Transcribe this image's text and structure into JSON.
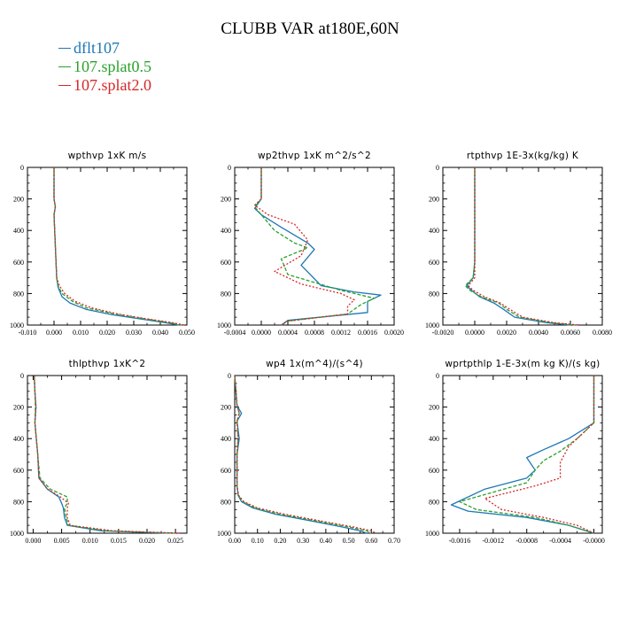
{
  "title": "CLUBB VAR at180E,60N",
  "colors": {
    "dflt107": "#1f77b4",
    "splat05": "#2ca02c",
    "splat20": "#d62728"
  },
  "legend": [
    {
      "label": "dflt107",
      "color": "#1f77b4"
    },
    {
      "label": "107.splat0.5",
      "color": "#2ca02c"
    },
    {
      "label": "107.splat2.0",
      "color": "#d62728"
    }
  ],
  "chart_data": [
    {
      "type": "line",
      "title": "wpthvp  1xK m/s",
      "xlim": [
        -0.01,
        0.05
      ],
      "ylim": [
        1000,
        0
      ],
      "y_reversed": true,
      "xticks": [
        "-0.010",
        "0.000",
        "0.010",
        "0.020",
        "0.030",
        "0.040",
        "0.050"
      ],
      "xtick_values": [
        -0.01,
        0.0,
        0.01,
        0.02,
        0.03,
        0.04,
        0.05
      ],
      "yticks": [
        0,
        200,
        400,
        600,
        800,
        1000
      ],
      "series": [
        {
          "name": "dflt107",
          "style": "solid",
          "x": [
            0.0,
            0.0,
            0.0005,
            0.0,
            0.0005,
            0.001,
            0.0015,
            0.003,
            0.006,
            0.012,
            0.022,
            0.032,
            0.042,
            0.047
          ],
          "y": [
            0,
            200,
            250,
            300,
            500,
            700,
            760,
            820,
            860,
            900,
            935,
            960,
            985,
            1000
          ]
        },
        {
          "name": "107.splat0.5",
          "style": "dashed",
          "x": [
            0.0,
            0.0,
            0.0005,
            0.0,
            0.0005,
            0.001,
            0.0015,
            0.003,
            0.007,
            0.012,
            0.023,
            0.033,
            0.043,
            0.048
          ],
          "y": [
            0,
            200,
            250,
            300,
            500,
            700,
            750,
            800,
            850,
            890,
            930,
            958,
            983,
            1000
          ]
        },
        {
          "name": "107.splat2.0",
          "style": "dotted",
          "x": [
            0.0,
            0.0,
            0.0005,
            0.0,
            0.0005,
            0.001,
            0.002,
            0.004,
            0.008,
            0.014,
            0.024,
            0.034,
            0.044,
            0.049
          ],
          "y": [
            0,
            200,
            250,
            300,
            500,
            700,
            750,
            800,
            850,
            890,
            930,
            958,
            983,
            1000
          ]
        }
      ]
    },
    {
      "type": "line",
      "title": "wp2thvp  1xK m^2/s^2",
      "xlim": [
        -0.0004,
        0.002
      ],
      "ylim": [
        1000,
        0
      ],
      "y_reversed": true,
      "xticks": [
        "-0.0004",
        "0.0000",
        "0.0004",
        "0.0008",
        "0.0012",
        "0.0016",
        "0.0020"
      ],
      "xtick_values": [
        -0.0004,
        0.0,
        0.0004,
        0.0008,
        0.0012,
        0.0016,
        0.002
      ],
      "yticks": [
        0,
        200,
        400,
        600,
        800,
        1000
      ],
      "series": [
        {
          "name": "dflt107",
          "style": "solid",
          "x": [
            0.0,
            0.0,
            -0.0001,
            0.0,
            0.0003,
            0.0007,
            0.0008,
            0.0006,
            0.0009,
            0.0014,
            0.0018,
            0.0016,
            0.0016,
            0.0004,
            0.0003
          ],
          "y": [
            0,
            200,
            260,
            300,
            380,
            480,
            520,
            620,
            750,
            790,
            810,
            850,
            920,
            970,
            1000
          ]
        },
        {
          "name": "107.splat0.5",
          "style": "dashed",
          "x": [
            0.0,
            0.0,
            -0.0001,
            0.0,
            0.0002,
            0.0005,
            0.0007,
            0.0003,
            0.0004,
            0.0012,
            0.0017,
            0.0015,
            0.0013,
            0.0004,
            0.0003
          ],
          "y": [
            0,
            200,
            250,
            300,
            400,
            480,
            510,
            580,
            680,
            780,
            830,
            870,
            930,
            975,
            1000
          ]
        },
        {
          "name": "107.splat2.0",
          "style": "dotted",
          "x": [
            0.0,
            0.0,
            -0.0001,
            0.0001,
            0.0005,
            0.0007,
            0.0006,
            0.0002,
            0.0006,
            0.0012,
            0.0014,
            0.0013,
            0.0013,
            0.0004,
            0.0003
          ],
          "y": [
            0,
            200,
            240,
            300,
            360,
            460,
            560,
            660,
            740,
            800,
            840,
            880,
            930,
            975,
            1000
          ]
        }
      ]
    },
    {
      "type": "line",
      "title": "rtpthvp  1E-3x(kg/kg) K",
      "xlim": [
        -0.002,
        0.008
      ],
      "ylim": [
        1000,
        0
      ],
      "y_reversed": true,
      "xticks": [
        "-0.0020",
        "0.0000",
        "0.0020",
        "0.0040",
        "0.0060",
        "0.0080"
      ],
      "xtick_values": [
        -0.002,
        0.0,
        0.002,
        0.004,
        0.006,
        0.008
      ],
      "yticks": [
        0,
        200,
        400,
        600,
        800,
        1000
      ],
      "series": [
        {
          "name": "dflt107",
          "style": "solid",
          "x": [
            0.0,
            0.0,
            -0.0001,
            -0.0005,
            -0.0002,
            0.0003,
            0.0012,
            0.0018,
            0.0025,
            0.0045,
            0.006
          ],
          "y": [
            0,
            600,
            700,
            750,
            780,
            820,
            860,
            900,
            950,
            985,
            1000
          ]
        },
        {
          "name": "107.splat0.5",
          "style": "dashed",
          "x": [
            0.0,
            0.0,
            -0.0001,
            -0.0006,
            -0.0003,
            0.0004,
            0.0015,
            0.002,
            0.0028,
            0.0048,
            0.0063
          ],
          "y": [
            0,
            600,
            700,
            750,
            780,
            820,
            860,
            900,
            950,
            985,
            1000
          ]
        },
        {
          "name": "107.splat2.0",
          "style": "dotted",
          "x": [
            0.0,
            0.0,
            0.0,
            -0.0004,
            -0.0001,
            0.0006,
            0.0016,
            0.0022,
            0.003,
            0.005,
            0.0065
          ],
          "y": [
            0,
            600,
            700,
            750,
            780,
            820,
            860,
            900,
            950,
            985,
            1000
          ]
        }
      ]
    },
    {
      "type": "line",
      "title": "thlpthvp  1xK^2",
      "xlim": [
        -0.001,
        0.027
      ],
      "ylim": [
        1000,
        0
      ],
      "y_reversed": true,
      "xticks": [
        "0.000",
        "0.005",
        "0.010",
        "0.015",
        "0.020",
        "0.025"
      ],
      "xtick_values": [
        0.0,
        0.005,
        0.01,
        0.015,
        0.02,
        0.025
      ],
      "yticks": [
        0,
        200,
        400,
        600,
        800,
        1000
      ],
      "series": [
        {
          "name": "dflt107",
          "style": "solid",
          "x": [
            0.0002,
            0.0003,
            0.0005,
            0.0003,
            0.0008,
            0.001,
            0.0025,
            0.0045,
            0.005,
            0.0053,
            0.0055,
            0.006,
            0.012,
            0.02,
            0.024
          ],
          "y": [
            0,
            100,
            200,
            300,
            500,
            650,
            720,
            770,
            810,
            840,
            900,
            950,
            985,
            995,
            1000
          ]
        },
        {
          "name": "107.splat0.5",
          "style": "dashed",
          "x": [
            0.0002,
            0.0003,
            0.0004,
            0.0003,
            0.0008,
            0.0012,
            0.003,
            0.006,
            0.006,
            0.0055,
            0.0058,
            0.0062,
            0.013,
            0.021,
            0.025
          ],
          "y": [
            0,
            100,
            200,
            300,
            500,
            650,
            720,
            770,
            810,
            840,
            900,
            950,
            985,
            995,
            1000
          ]
        },
        {
          "name": "107.splat2.0",
          "style": "dotted",
          "x": [
            0.0002,
            0.0003,
            0.0005,
            0.0003,
            0.0008,
            0.001,
            0.0025,
            0.0048,
            0.0062,
            0.006,
            0.006,
            0.0065,
            0.014,
            0.022,
            0.026
          ],
          "y": [
            0,
            100,
            200,
            300,
            500,
            650,
            720,
            770,
            810,
            840,
            900,
            950,
            985,
            995,
            1000
          ]
        }
      ]
    },
    {
      "type": "line",
      "title": "wp4  1x(m^4)/(s^4)",
      "xlim": [
        0.0,
        0.7
      ],
      "ylim": [
        1000,
        0
      ],
      "y_reversed": true,
      "xticks": [
        "0.00",
        "0.10",
        "0.20",
        "0.30",
        "0.40",
        "0.50",
        "0.60",
        "0.70"
      ],
      "xtick_values": [
        0.0,
        0.1,
        0.2,
        0.3,
        0.4,
        0.5,
        0.6,
        0.7
      ],
      "yticks": [
        0,
        200,
        400,
        600,
        800,
        1000
      ],
      "series": [
        {
          "name": "dflt107",
          "style": "solid",
          "x": [
            0.0,
            0.01,
            0.03,
            0.01,
            0.02,
            0.01,
            0.01,
            0.015,
            0.03,
            0.08,
            0.18,
            0.33,
            0.47,
            0.55,
            0.58
          ],
          "y": [
            0,
            190,
            240,
            290,
            400,
            500,
            700,
            760,
            800,
            840,
            880,
            920,
            960,
            985,
            1000
          ]
        },
        {
          "name": "107.splat0.5",
          "style": "dashed",
          "x": [
            0.0,
            0.01,
            0.02,
            0.01,
            0.015,
            0.01,
            0.01,
            0.016,
            0.035,
            0.09,
            0.2,
            0.35,
            0.5,
            0.58,
            0.6
          ],
          "y": [
            0,
            190,
            240,
            290,
            400,
            500,
            700,
            760,
            800,
            840,
            880,
            920,
            960,
            985,
            1000
          ]
        },
        {
          "name": "107.splat2.0",
          "style": "dotted",
          "x": [
            0.0,
            0.01,
            0.02,
            0.01,
            0.015,
            0.01,
            0.01,
            0.017,
            0.04,
            0.1,
            0.22,
            0.37,
            0.52,
            0.6,
            0.62
          ],
          "y": [
            0,
            190,
            240,
            290,
            400,
            500,
            700,
            760,
            800,
            840,
            880,
            920,
            960,
            985,
            1000
          ]
        }
      ]
    },
    {
      "type": "line",
      "title": "wprtpthlp  1-E-3x(m kg K)/(s kg)",
      "xlim": [
        -0.0018,
        0.0001
      ],
      "ylim": [
        1000,
        0
      ],
      "y_reversed": true,
      "xticks": [
        "-0.0016",
        "-0.0012",
        "-0.0008",
        "-0.0004",
        "-0.0000"
      ],
      "xtick_values": [
        -0.0016,
        -0.0012,
        -0.0008,
        -0.0004,
        0.0
      ],
      "yticks": [
        0,
        200,
        400,
        600,
        800,
        1000
      ],
      "series": [
        {
          "name": "dflt107",
          "style": "solid",
          "x": [
            0.0,
            0.0,
            -0.0003,
            -0.0006,
            -0.0008,
            -0.0007,
            -0.0008,
            -0.0013,
            -0.0017,
            -0.0015,
            -0.0008,
            -0.0003,
            0.0
          ],
          "y": [
            0,
            300,
            400,
            470,
            520,
            600,
            650,
            720,
            820,
            860,
            900,
            950,
            1000
          ]
        },
        {
          "name": "107.splat0.5",
          "style": "dashed",
          "x": [
            0.0,
            0.0,
            -0.0002,
            -0.0004,
            -0.0006,
            -0.0007,
            -0.0008,
            -0.0012,
            -0.0016,
            -0.0014,
            -0.0007,
            -0.0003,
            0.0
          ],
          "y": [
            0,
            300,
            400,
            480,
            540,
            600,
            680,
            740,
            800,
            850,
            900,
            950,
            1000
          ]
        },
        {
          "name": "107.splat2.0",
          "style": "dotted",
          "x": [
            0.0,
            0.0,
            -0.0001,
            -0.0003,
            -0.0004,
            -0.0004,
            -0.0007,
            -0.0013,
            -0.0011,
            -0.0006,
            -0.0002,
            0.0
          ],
          "y": [
            0,
            300,
            350,
            450,
            550,
            650,
            700,
            780,
            850,
            900,
            950,
            1000
          ]
        }
      ]
    }
  ]
}
